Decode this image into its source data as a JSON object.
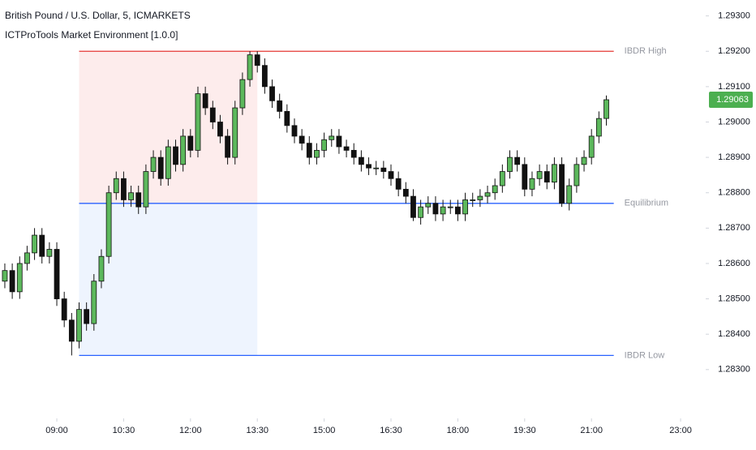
{
  "chart_data": {
    "type": "candlestick",
    "title": "British Pound / U.S. Dollar, 5, ICMARKETS",
    "subtitle": "ICTProTools Market Environment [1.0.0]",
    "x": [
      470,
      480,
      490,
      500,
      510,
      520,
      530,
      540,
      550,
      560,
      570,
      580,
      590,
      600,
      610,
      620,
      630,
      640,
      650,
      660,
      670,
      680,
      690,
      700,
      710,
      720,
      730,
      740,
      750,
      760,
      770,
      780,
      790,
      800,
      810,
      820,
      830,
      840,
      850,
      860,
      870,
      880,
      890,
      900,
      910,
      920,
      930,
      940,
      950,
      960,
      970,
      980,
      990,
      1000,
      1010,
      1020,
      1030,
      1040,
      1050,
      1060,
      1070,
      1080,
      1090,
      1100,
      1110,
      1120,
      1130,
      1140,
      1150,
      1160,
      1170,
      1180,
      1190,
      1200,
      1210,
      1220,
      1230,
      1240,
      1250,
      1260,
      1270,
      1280
    ],
    "open": [
      1.2855,
      1.2858,
      1.2852,
      1.286,
      1.2863,
      1.2868,
      1.2862,
      1.2864,
      1.285,
      1.2844,
      1.2838,
      1.2847,
      1.2843,
      1.2855,
      1.2862,
      1.288,
      1.2884,
      1.2878,
      1.288,
      1.2876,
      1.2886,
      1.289,
      1.2884,
      1.2893,
      1.2888,
      1.2896,
      1.2892,
      1.2908,
      1.2904,
      1.29,
      1.2896,
      1.289,
      1.2904,
      1.2912,
      1.2919,
      1.2916,
      1.291,
      1.2906,
      1.2903,
      1.2899,
      1.2896,
      1.2894,
      1.289,
      1.2892,
      1.2895,
      1.2896,
      1.2893,
      1.2892,
      1.289,
      1.2888,
      1.2887,
      1.2887,
      1.2886,
      1.2884,
      1.2881,
      1.2879,
      1.2873,
      1.2876,
      1.2877,
      1.2874,
      1.2876,
      1.2876,
      1.2874,
      1.2878,
      1.2878,
      1.2879,
      1.288,
      1.2882,
      1.2886,
      1.289,
      1.2888,
      1.2881,
      1.2884,
      1.2886,
      1.2883,
      1.2888,
      1.2877,
      1.2882,
      1.2888,
      1.289,
      1.2896,
      1.2901
    ],
    "high": [
      1.286,
      1.286,
      1.2862,
      1.2865,
      1.287,
      1.287,
      1.2866,
      1.2866,
      1.2852,
      1.2846,
      1.2849,
      1.2849,
      1.2857,
      1.2864,
      1.2882,
      1.2886,
      1.2886,
      1.2882,
      1.2882,
      1.2888,
      1.2892,
      1.2892,
      1.2895,
      1.2895,
      1.2898,
      1.2898,
      1.291,
      1.291,
      1.2906,
      1.2902,
      1.2898,
      1.2906,
      1.2914,
      1.292,
      1.292,
      1.2918,
      1.2912,
      1.2908,
      1.2905,
      1.2901,
      1.2898,
      1.2896,
      1.2894,
      1.2897,
      1.2898,
      1.2898,
      1.2895,
      1.2894,
      1.2892,
      1.289,
      1.2889,
      1.2889,
      1.2888,
      1.2886,
      1.2883,
      1.2881,
      1.2878,
      1.2879,
      1.2879,
      1.2878,
      1.2878,
      1.2878,
      1.288,
      1.288,
      1.2881,
      1.2882,
      1.2884,
      1.2888,
      1.2892,
      1.2892,
      1.289,
      1.2886,
      1.2888,
      1.2888,
      1.289,
      1.289,
      1.2884,
      1.289,
      1.2892,
      1.2898,
      1.2903,
      1.29075
    ],
    "low": [
      1.2853,
      1.285,
      1.285,
      1.2858,
      1.2861,
      1.286,
      1.286,
      1.2848,
      1.2842,
      1.2834,
      1.2836,
      1.2841,
      1.2841,
      1.2853,
      1.286,
      1.2878,
      1.2876,
      1.2876,
      1.2874,
      1.2874,
      1.2884,
      1.2882,
      1.2882,
      1.2886,
      1.2886,
      1.289,
      1.289,
      1.2902,
      1.2898,
      1.2894,
      1.2888,
      1.2888,
      1.2902,
      1.291,
      1.2914,
      1.2908,
      1.2904,
      1.2901,
      1.2897,
      1.2894,
      1.2892,
      1.2888,
      1.2888,
      1.289,
      1.2893,
      1.2891,
      1.289,
      1.2888,
      1.2886,
      1.2885,
      1.2885,
      1.2884,
      1.2882,
      1.2879,
      1.2877,
      1.2872,
      1.2871,
      1.2874,
      1.2872,
      1.2872,
      1.2874,
      1.2872,
      1.2872,
      1.2876,
      1.2876,
      1.2877,
      1.2878,
      1.288,
      1.2884,
      1.2886,
      1.2879,
      1.2879,
      1.2882,
      1.2881,
      1.2881,
      1.2876,
      1.2875,
      1.288,
      1.2886,
      1.2888,
      1.2894,
      1.2899
    ],
    "close": [
      1.2858,
      1.2852,
      1.286,
      1.2863,
      1.2868,
      1.2862,
      1.2864,
      1.285,
      1.2844,
      1.2838,
      1.2847,
      1.2843,
      1.2855,
      1.2862,
      1.288,
      1.2884,
      1.2878,
      1.288,
      1.2876,
      1.2886,
      1.289,
      1.2884,
      1.2893,
      1.2888,
      1.2896,
      1.2892,
      1.2908,
      1.2904,
      1.29,
      1.2896,
      1.289,
      1.2904,
      1.2912,
      1.2919,
      1.2916,
      1.291,
      1.2906,
      1.2903,
      1.2899,
      1.2896,
      1.2894,
      1.289,
      1.2892,
      1.2895,
      1.2896,
      1.2893,
      1.2892,
      1.289,
      1.2888,
      1.2887,
      1.2887,
      1.2886,
      1.2884,
      1.2881,
      1.2879,
      1.2873,
      1.2876,
      1.2877,
      1.2874,
      1.2876,
      1.2876,
      1.2874,
      1.2878,
      1.2878,
      1.2879,
      1.288,
      1.2882,
      1.2886,
      1.289,
      1.2888,
      1.2881,
      1.2884,
      1.2886,
      1.2883,
      1.2888,
      1.2877,
      1.2882,
      1.2888,
      1.289,
      1.2896,
      1.2901,
      1.29063
    ],
    "up_color": "#5cb85c",
    "down_color": "#111111",
    "last_price": 1.29063,
    "last_price_color": "#4caf50",
    "zone_x": [
      570,
      810
    ],
    "levels": [
      {
        "name": "IBDR High",
        "value": 1.292,
        "color": "#e53935",
        "x": [
          570,
          1290
        ]
      },
      {
        "name": "Equilibrium",
        "value": 1.2877,
        "color": "#2962ff",
        "x": [
          570,
          1290
        ]
      },
      {
        "name": "IBDR Low",
        "value": 1.2834,
        "color": "#2962ff",
        "x": [
          570,
          1290
        ]
      }
    ],
    "xlim": [
      463.5,
      1413.8
    ],
    "ylim": [
      1.28162,
      1.29345
    ],
    "xticks": [
      {
        "value": 540,
        "label": "09:00"
      },
      {
        "value": 630,
        "label": "10:30"
      },
      {
        "value": 720,
        "label": "12:00"
      },
      {
        "value": 810,
        "label": "13:30"
      },
      {
        "value": 900,
        "label": "15:00"
      },
      {
        "value": 990,
        "label": "16:30"
      },
      {
        "value": 1080,
        "label": "18:00"
      },
      {
        "value": 1170,
        "label": "19:30"
      },
      {
        "value": 1260,
        "label": "21:00"
      },
      {
        "value": 1380,
        "label": "23:00"
      }
    ],
    "yticks": [
      {
        "value": 1.283,
        "label": "1.28300"
      },
      {
        "value": 1.284,
        "label": "1.28400"
      },
      {
        "value": 1.285,
        "label": "1.28500"
      },
      {
        "value": 1.286,
        "label": "1.28600"
      },
      {
        "value": 1.287,
        "label": "1.28700"
      },
      {
        "value": 1.288,
        "label": "1.28800"
      },
      {
        "value": 1.289,
        "label": "1.28900"
      },
      {
        "value": 1.29,
        "label": "1.29000"
      },
      {
        "value": 1.291,
        "label": "1.29100"
      },
      {
        "value": 1.292,
        "label": "1.29200"
      },
      {
        "value": 1.293,
        "label": "1.29300"
      }
    ]
  }
}
